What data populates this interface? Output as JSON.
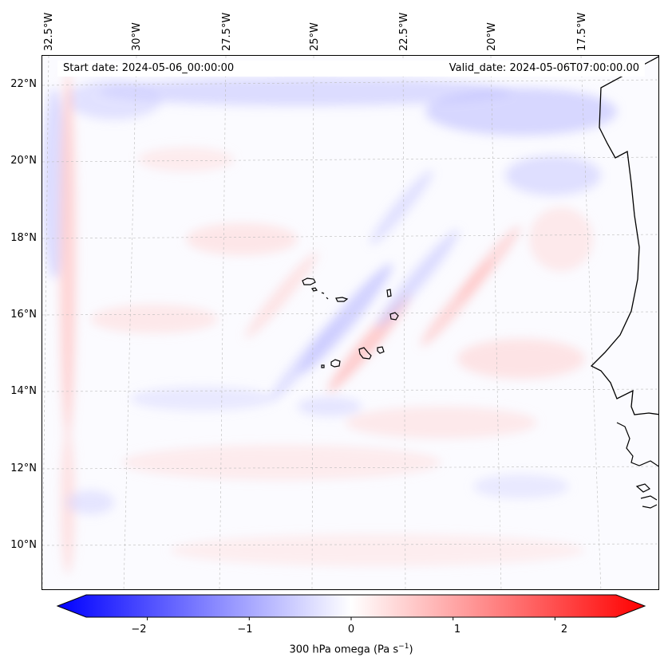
{
  "map": {
    "lon_labels": [
      "32.5°W",
      "30°W",
      "27.5°W",
      "25°W",
      "22.5°W",
      "20°W",
      "17.5°W"
    ],
    "lat_labels": [
      "22°N",
      "20°N",
      "18°N",
      "16°N",
      "14°N",
      "12°N",
      "10°N"
    ],
    "start_date": "Start date: 2024-05-06_00:00:00",
    "valid_date": "Valid_date: 2024-05-06T07:00:00.00",
    "field_colors": {
      "negative": "#0000ff",
      "zero": "#ffffff",
      "positive": "#ff0000"
    }
  },
  "colorbar": {
    "ticks": [
      "−2",
      "−1",
      "0",
      "1",
      "2"
    ],
    "tick_values": [
      -2,
      -1,
      0,
      1,
      2
    ],
    "vmin": -2.6,
    "vmax": 2.6,
    "label_prefix": "300 hPa omega (Pa s",
    "label_exp": "−1",
    "label_suffix": ")"
  }
}
